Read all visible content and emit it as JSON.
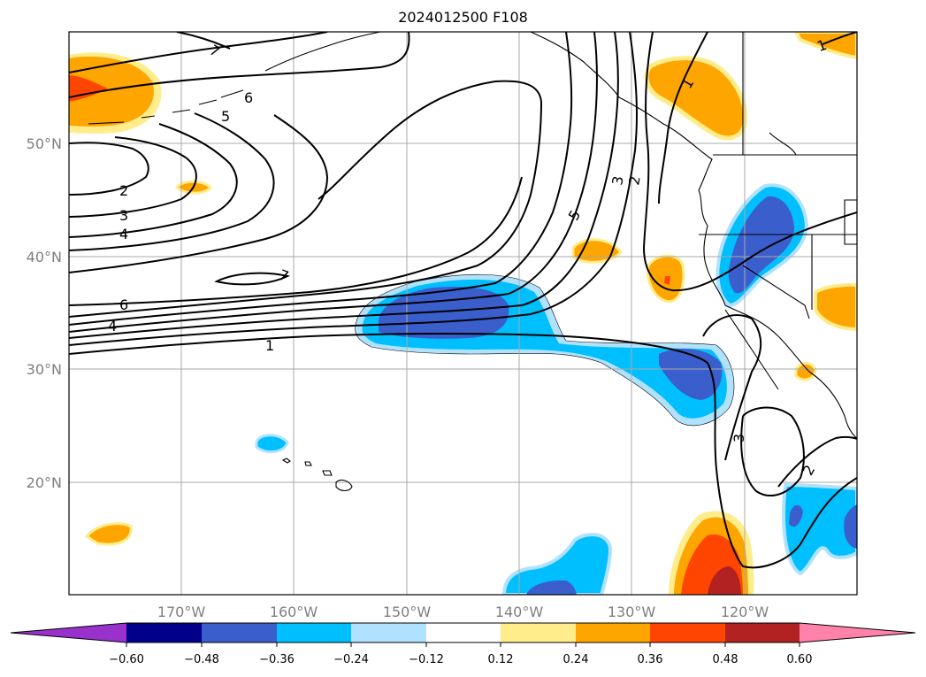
{
  "title": "2024012500 F108",
  "map": {
    "lon_labels": [
      "170°W",
      "160°W",
      "150°W",
      "140°W",
      "130°W",
      "120°W"
    ],
    "lat_labels": [
      "50°N",
      "40°N",
      "30°N",
      "20°N"
    ]
  },
  "contour_labels": [
    "7",
    "6",
    "5",
    "2",
    "3",
    "4",
    "7",
    "6",
    "4",
    "1",
    "5",
    "3",
    "2",
    "1",
    "3",
    "2",
    "1"
  ],
  "colorbar": {
    "ticks": [
      "−0.60",
      "−0.48",
      "−0.36",
      "−0.24",
      "−0.12",
      "0.12",
      "0.24",
      "0.36",
      "0.48",
      "0.60"
    ],
    "colors": [
      "#9932cc",
      "#00008b",
      "#3a5fcd",
      "#00bfff",
      "#b0e2ff",
      "#ffffff",
      "#ffec8b",
      "#ffa500",
      "#ff4500",
      "#b22222",
      "#ff82ab"
    ]
  }
}
